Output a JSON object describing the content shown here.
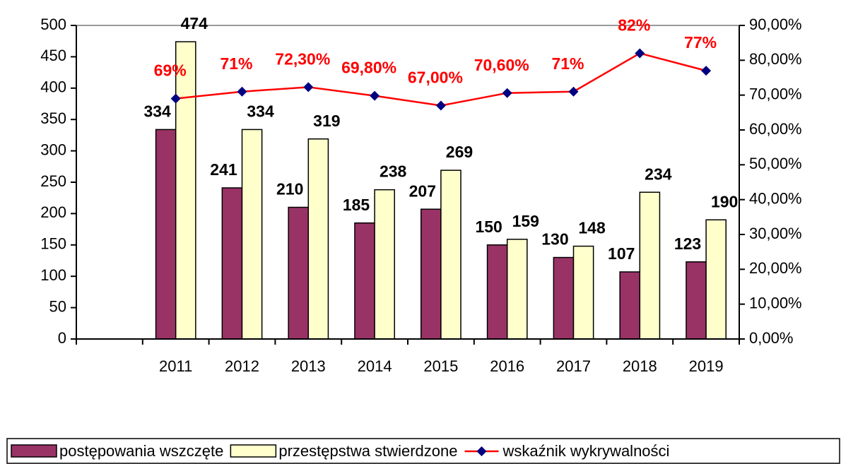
{
  "chart_data": {
    "type": "bar",
    "categories": [
      null,
      "2011",
      "2012",
      "2013",
      "2014",
      "2015",
      "2016",
      "2017",
      "2018",
      "2019"
    ],
    "series": [
      {
        "name": "postępowania wszczęte",
        "color": "#993366",
        "values": [
          null,
          334,
          241,
          210,
          185,
          207,
          150,
          130,
          107,
          123
        ]
      },
      {
        "name": "przestępstwa stwierdzone",
        "color": "#ffffcc",
        "values": [
          null,
          474,
          334,
          319,
          238,
          269,
          159,
          148,
          234,
          190
        ]
      },
      {
        "name": "wskaźnik wykrywalności",
        "type": "line",
        "axis": "y2",
        "color": "#ff0000",
        "marker_color": "#000080",
        "values": [
          null,
          69,
          71,
          72.3,
          69.8,
          67,
          70.6,
          71,
          82,
          77
        ],
        "value_labels": [
          null,
          "69%",
          "71%",
          "72,30%",
          "69,80%",
          "67,00%",
          "70,60%",
          "71%",
          "82%",
          "77%"
        ]
      }
    ],
    "ylim": [
      0,
      500
    ],
    "yticks": [
      0,
      50,
      100,
      150,
      200,
      250,
      300,
      350,
      400,
      450,
      500
    ],
    "y2lim": [
      0,
      90
    ],
    "y2ticks": [
      {
        "value": 0,
        "label": "0,00%"
      },
      {
        "value": 10,
        "label": "10,00%"
      },
      {
        "value": 20,
        "label": "20,00%"
      },
      {
        "value": 30,
        "label": "30,00%"
      },
      {
        "value": 40,
        "label": "40,00%"
      },
      {
        "value": 50,
        "label": "50,00%"
      },
      {
        "value": 60,
        "label": "60,00%"
      },
      {
        "value": 70,
        "label": "70,00%"
      },
      {
        "value": 80,
        "label": "80,00%"
      },
      {
        "value": 90,
        "label": "90,00%"
      }
    ],
    "legend": "bottom"
  }
}
